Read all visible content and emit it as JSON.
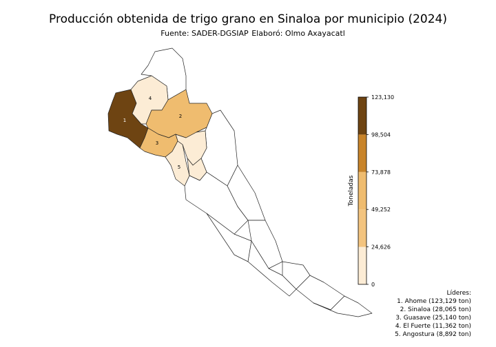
{
  "title": "Producción obtenida de trigo grano en Sinaloa por municipio (2024)",
  "source": "Fuente: SADER-DGSIAP",
  "author": "Elaboró: Olmo Axayacatl",
  "regions": [
    {
      "label": "1"
    },
    {
      "label": "2"
    },
    {
      "label": "3"
    },
    {
      "label": "4"
    },
    {
      "label": "5"
    }
  ],
  "colorbar": {
    "label": "Toneladas",
    "lim": [
      0,
      123130
    ],
    "ticks": [
      0,
      {
        "value": 24626,
        "label": "24,626"
      },
      {
        "value": 49252,
        "label": "49,252"
      },
      {
        "value": 73878,
        "label": "73,878"
      },
      {
        "value": 98504,
        "label": "98,504"
      },
      {
        "value": 123130,
        "label": "123,130"
      }
    ],
    "colors": [
      "#fcecd5",
      "#f3c47f",
      "#efbc6f",
      "#c8842a",
      "#6e4412"
    ]
  },
  "leaders": {
    "title": "Líderes:",
    "items": [
      "1. Ahome (123,129 ton)",
      "2. Sinaloa (28,065 ton)",
      "3. Guasave (25,140 ton)",
      "4. El Fuerte (11,362 ton)",
      "5. Angostura (8,892 ton)"
    ]
  }
}
